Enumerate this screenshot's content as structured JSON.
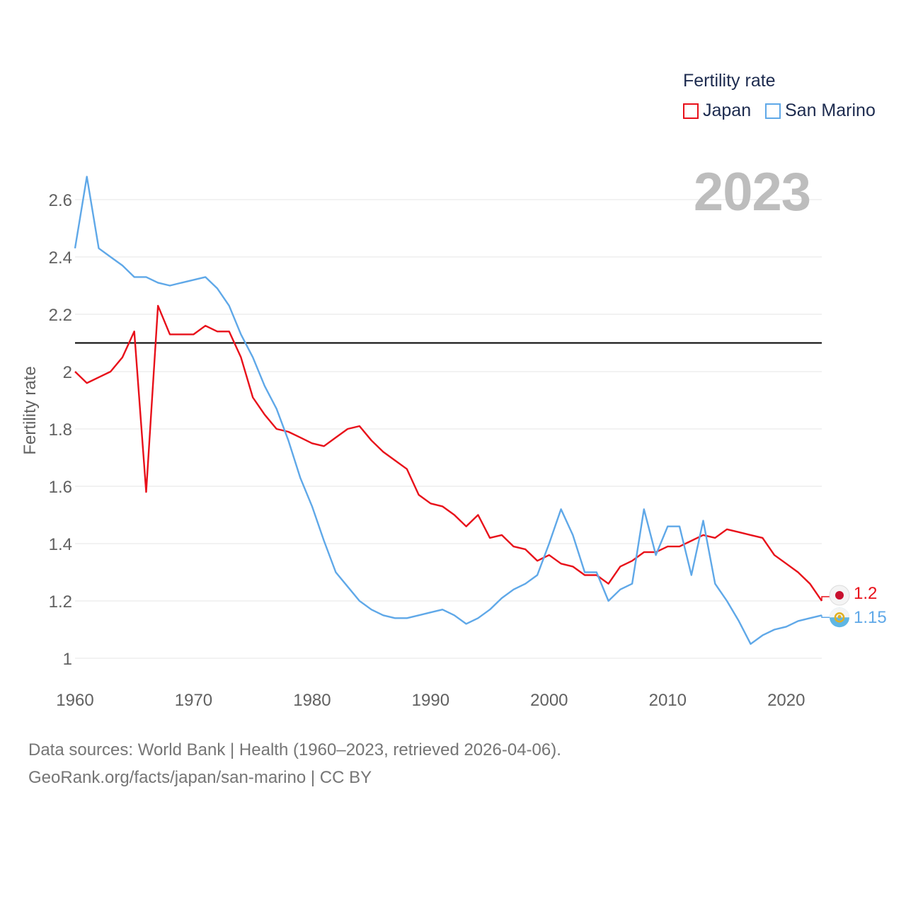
{
  "legend": {
    "title": "Fertility rate",
    "items": [
      {
        "label": "Japan",
        "color": "#e8101a"
      },
      {
        "label": "San Marino",
        "color": "#5fa8e8"
      }
    ]
  },
  "year_label": "2023",
  "end_labels": {
    "japan": "1.2",
    "san_marino": "1.15"
  },
  "footer": {
    "line1": "Data sources: World Bank | Health (1960–2023, retrieved 2026-04-06).",
    "line2": "GeoRank.org/facts/japan/san-marino | CC BY"
  },
  "chart_data": {
    "type": "line",
    "title": "",
    "xlabel": "",
    "ylabel": "Fertility rate",
    "xlim": [
      1960,
      2023
    ],
    "ylim": [
      0.95,
      2.7
    ],
    "x_ticks": [
      1960,
      1970,
      1980,
      1990,
      2000,
      2010,
      2020
    ],
    "y_ticks": [
      1,
      1.2,
      1.4,
      1.6,
      1.8,
      2,
      2.2,
      2.4,
      2.6
    ],
    "y_tick_labels": [
      "1",
      "1.2",
      "1.4",
      "1.6",
      "1.8",
      "2",
      "2.2",
      "2.4",
      "2.6"
    ],
    "reference_line": {
      "y": 2.1,
      "color": "#000000"
    },
    "x": [
      1960,
      1961,
      1962,
      1963,
      1964,
      1965,
      1966,
      1967,
      1968,
      1969,
      1970,
      1971,
      1972,
      1973,
      1974,
      1975,
      1976,
      1977,
      1978,
      1979,
      1980,
      1981,
      1982,
      1983,
      1984,
      1985,
      1986,
      1987,
      1988,
      1989,
      1990,
      1991,
      1992,
      1993,
      1994,
      1995,
      1996,
      1997,
      1998,
      1999,
      2000,
      2001,
      2002,
      2003,
      2004,
      2005,
      2006,
      2007,
      2008,
      2009,
      2010,
      2011,
      2012,
      2013,
      2014,
      2015,
      2016,
      2017,
      2018,
      2019,
      2020,
      2021,
      2022,
      2023
    ],
    "series": [
      {
        "name": "Japan",
        "color": "#e8101a",
        "values": [
          2.0,
          1.96,
          1.98,
          2.0,
          2.05,
          2.14,
          1.58,
          2.23,
          2.13,
          2.13,
          2.13,
          2.16,
          2.14,
          2.14,
          2.05,
          1.91,
          1.85,
          1.8,
          1.79,
          1.77,
          1.75,
          1.74,
          1.77,
          1.8,
          1.81,
          1.76,
          1.72,
          1.69,
          1.66,
          1.57,
          1.54,
          1.53,
          1.5,
          1.46,
          1.5,
          1.42,
          1.43,
          1.39,
          1.38,
          1.34,
          1.36,
          1.33,
          1.32,
          1.29,
          1.29,
          1.26,
          1.32,
          1.34,
          1.37,
          1.37,
          1.39,
          1.39,
          1.41,
          1.43,
          1.42,
          1.45,
          1.44,
          1.43,
          1.42,
          1.36,
          1.33,
          1.3,
          1.26,
          1.2
        ]
      },
      {
        "name": "San Marino",
        "color": "#5fa8e8",
        "values": [
          2.43,
          2.68,
          2.43,
          2.4,
          2.37,
          2.33,
          2.33,
          2.31,
          2.3,
          2.31,
          2.32,
          2.33,
          2.29,
          2.23,
          2.13,
          2.05,
          1.95,
          1.87,
          1.76,
          1.63,
          1.53,
          1.41,
          1.3,
          1.25,
          1.2,
          1.17,
          1.15,
          1.14,
          1.14,
          1.15,
          1.16,
          1.17,
          1.15,
          1.12,
          1.14,
          1.17,
          1.21,
          1.24,
          1.26,
          1.29,
          1.4,
          1.52,
          1.43,
          1.3,
          1.3,
          1.2,
          1.24,
          1.26,
          1.52,
          1.36,
          1.46,
          1.46,
          1.29,
          1.48,
          1.26,
          1.2,
          1.13,
          1.05,
          1.08,
          1.1,
          1.11,
          1.13,
          1.14,
          1.15
        ]
      }
    ]
  }
}
